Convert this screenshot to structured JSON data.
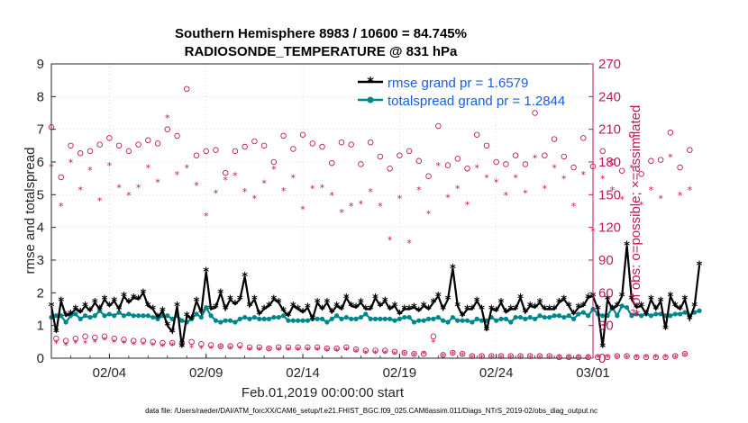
{
  "chart_data": {
    "type": "line",
    "title_line1": "Southern Hemisphere 8983 / 10600 = 84.745%",
    "title_line2": "RADIOSONDE_TEMPERATURE @ 831 hPa",
    "xlabel": "Feb.01,2019 00:00:00 start",
    "ylabel_left": "rmse and totalspread",
    "ylabel_right": "# of obs: o=possible; ×=assimilated",
    "footnote": "data file: /Users/raeder/DAI/ATM_forcXX/CAM6_setup/f.e21.FHIST_BGC.f09_025.CAM6assim.011/Diags_NTrS_2019-02/obs_diag_output.nc",
    "x_range_days": [
      1,
      29
    ],
    "ylim_left": [
      0,
      9
    ],
    "ylim_right": [
      0,
      270
    ],
    "x_ticks": [
      {
        "day": 4,
        "label": "02/04"
      },
      {
        "day": 9,
        "label": "02/09"
      },
      {
        "day": 14,
        "label": "02/14"
      },
      {
        "day": 19,
        "label": "02/19"
      },
      {
        "day": 24,
        "label": "02/24"
      },
      {
        "day": 29,
        "label": "03/01"
      }
    ],
    "y_left_ticks": [
      "0",
      "1",
      "2",
      "3",
      "4",
      "5",
      "6",
      "7",
      "8",
      "9"
    ],
    "y_right_ticks": [
      "0",
      "30",
      "60",
      "90",
      "120",
      "150",
      "180",
      "210",
      "240",
      "270"
    ],
    "legend": {
      "rmse_label": "rmse grand pr = 1.6579",
      "spread_label": "totalspread grand pr = 1.2844",
      "position": "top-right"
    },
    "colors": {
      "rmse": "#000000",
      "spread": "#00868b",
      "obs": "#c2185b",
      "legend_text": "#1a5fd6"
    },
    "step_days": 0.25,
    "series": [
      {
        "name": "rmse",
        "values": [
          1.6,
          0.8,
          1.75,
          1.3,
          1.35,
          1.5,
          1.4,
          1.6,
          1.45,
          1.7,
          1.5,
          1.8,
          1.6,
          1.75,
          1.5,
          1.9,
          1.7,
          1.85,
          1.8,
          2.0,
          1.6,
          1.5,
          1.25,
          1.45,
          1.0,
          0.8,
          1.6,
          0.35,
          1.3,
          1.2,
          1.75,
          1.4,
          2.65,
          1.5,
          1.55,
          2.0,
          1.5,
          1.8,
          1.65,
          1.8,
          2.5,
          1.6,
          1.8,
          1.35,
          1.5,
          1.6,
          1.8,
          1.7,
          1.45,
          1.3,
          1.6,
          1.5,
          1.4,
          1.55,
          1.2,
          1.7,
          1.5,
          1.7,
          1.4,
          1.6,
          1.5,
          1.85,
          1.6,
          1.55,
          1.7,
          1.5,
          1.5,
          1.85,
          1.6,
          1.75,
          1.5,
          1.6,
          1.35,
          1.5,
          1.5,
          1.55,
          1.45,
          1.6,
          1.5,
          1.7,
          1.9,
          1.5,
          1.8,
          2.75,
          1.6,
          1.3,
          1.5,
          1.5,
          1.75,
          1.5,
          0.85,
          1.5,
          1.45,
          1.7,
          1.4,
          1.5,
          1.5,
          1.85,
          1.4,
          1.6,
          1.55,
          1.7,
          1.5,
          1.5,
          1.5,
          1.7,
          1.8,
          1.6,
          1.35,
          1.55,
          1.6,
          1.85,
          1.9,
          1.5,
          0.35,
          1.8,
          1.5,
          1.6,
          1.9,
          3.45,
          1.8,
          1.55,
          1.6,
          1.35,
          1.8,
          1.5,
          1.75,
          0.9,
          1.9,
          1.6,
          1.5,
          1.8,
          1.2,
          1.6,
          2.85
        ]
      },
      {
        "name": "totalspread",
        "values": [
          1.25,
          1.3,
          1.3,
          1.1,
          1.3,
          1.35,
          1.2,
          1.3,
          1.25,
          1.3,
          1.45,
          1.3,
          1.35,
          1.3,
          1.4,
          1.3,
          1.35,
          1.3,
          1.3,
          1.3,
          1.3,
          1.25,
          1.2,
          1.3,
          1.3,
          1.2,
          1.3,
          1.15,
          1.1,
          1.2,
          1.35,
          1.25,
          1.55,
          1.3,
          1.15,
          1.1,
          1.15,
          1.15,
          1.1,
          1.2,
          1.25,
          1.2,
          1.25,
          1.2,
          1.2,
          1.2,
          1.25,
          1.25,
          1.3,
          1.15,
          1.15,
          1.15,
          1.15,
          1.15,
          1.2,
          1.2,
          1.2,
          1.1,
          1.2,
          1.3,
          1.2,
          1.25,
          1.2,
          1.2,
          1.25,
          1.35,
          1.2,
          1.2,
          1.2,
          1.2,
          1.2,
          1.15,
          1.2,
          1.25,
          1.25,
          1.1,
          1.15,
          1.15,
          1.2,
          1.2,
          1.25,
          1.15,
          1.1,
          1.25,
          1.15,
          1.15,
          1.15,
          1.1,
          1.2,
          1.15,
          1.15,
          1.25,
          1.15,
          1.2,
          1.2,
          1.1,
          1.25,
          1.25,
          1.2,
          1.25,
          1.2,
          1.3,
          1.25,
          1.25,
          1.3,
          1.3,
          1.25,
          1.3,
          1.2,
          1.35,
          1.4,
          1.3,
          1.5,
          1.35,
          1.3,
          1.3,
          1.55,
          1.3,
          1.6,
          1.55,
          1.3,
          1.35,
          1.3,
          1.35,
          1.3,
          1.35,
          1.35,
          1.3,
          1.3,
          1.35,
          1.35,
          1.4,
          1.3,
          1.4,
          1.45
        ]
      },
      {
        "name": "possible",
        "values": [
          212,
          18,
          166,
          16,
          195,
          18,
          188,
          20,
          190,
          19,
          196,
          20,
          202,
          18,
          195,
          17,
          190,
          16,
          196,
          16,
          200,
          15,
          197,
          14,
          210,
          14,
          204,
          14,
          247,
          15,
          186,
          13,
          190,
          12,
          191,
          11,
          170,
          11,
          190,
          12,
          194,
          10,
          199,
          10,
          195,
          9,
          180,
          10,
          204,
          10,
          192,
          10,
          205,
          10,
          197,
          10,
          194,
          9,
          179,
          9,
          198,
          10,
          196,
          8,
          178,
          7,
          198,
          7,
          185,
          7,
          174,
          6,
          186,
          5,
          190,
          4,
          181,
          4,
          167,
          20,
          213,
          3,
          177,
          5,
          183,
          4,
          174,
          2,
          205,
          2,
          195,
          2,
          180,
          2,
          178,
          2,
          186,
          2,
          178,
          2,
          225,
          2,
          186,
          2,
          201,
          1,
          185,
          1,
          175,
          1,
          202,
          1,
          176,
          1,
          190,
          1,
          180,
          2,
          172,
          2,
          205,
          1,
          169,
          1,
          181,
          1,
          182,
          1,
          207,
          2,
          175,
          4,
          191
        ]
      },
      {
        "name": "assimilated",
        "values": [
          176,
          14,
          140,
          12,
          180,
          14,
          155,
          14,
          173,
          15,
          145,
          17,
          177,
          15,
          157,
          14,
          150,
          13,
          157,
          13,
          175,
          12,
          162,
          11,
          221,
          12,
          169,
          11,
          175,
          10,
          159,
          9,
          131,
          9,
          152,
          10,
          164,
          9,
          168,
          9,
          153,
          8,
          147,
          8,
          161,
          8,
          174,
          8,
          154,
          8,
          166,
          8,
          137,
          8,
          156,
          8,
          157,
          7,
          150,
          7,
          134,
          8,
          140,
          6,
          142,
          5,
          153,
          5,
          140,
          5,
          109,
          4,
          147,
          4,
          106,
          3,
          155,
          4,
          133,
          15,
          177,
          2,
          148,
          4,
          156,
          3,
          141,
          1,
          175,
          1,
          166,
          1,
          162,
          1,
          150,
          1,
          166,
          1,
          152,
          1,
          184,
          1,
          156,
          1,
          175,
          1,
          165,
          1,
          140,
          1,
          169,
          1,
          117,
          1,
          165,
          1,
          155,
          1,
          146,
          1,
          175,
          1,
          141,
          1,
          155,
          1,
          147,
          1,
          185,
          1,
          150,
          3,
          155
        ]
      }
    ]
  }
}
